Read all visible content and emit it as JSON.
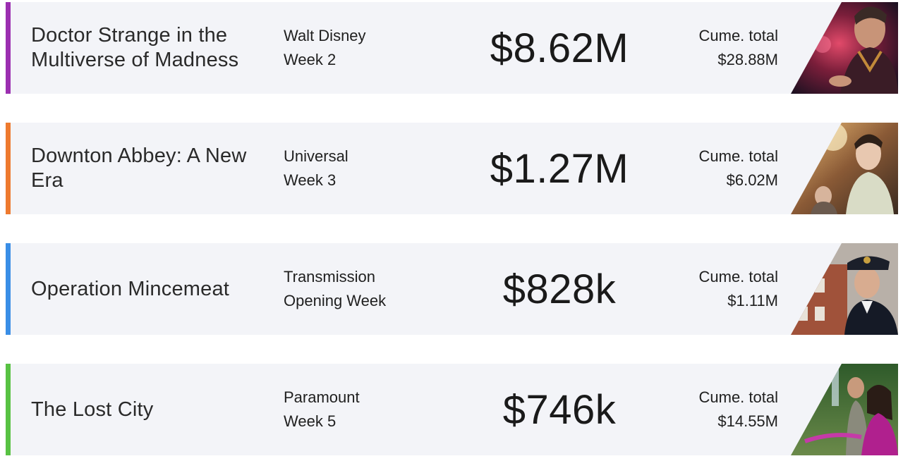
{
  "cume_label": "Cume. total",
  "movies": [
    {
      "title": "Doctor Strange in the Multiverse of Madness",
      "distributor": "Walt Disney",
      "week": "Week 2",
      "gross": "$8.62M",
      "cume": "$28.88M",
      "accent_color": "#9b2fb0",
      "poster_icon": "doctor-strange-poster"
    },
    {
      "title": "Downton Abbey: A New Era",
      "distributor": "Universal",
      "week": "Week 3",
      "gross": "$1.27M",
      "cume": "$6.02M",
      "accent_color": "#ee7a2f",
      "poster_icon": "downton-abbey-poster"
    },
    {
      "title": "Operation Mincemeat",
      "distributor": "Transmission",
      "week": "Opening Week",
      "gross": "$828k",
      "cume": "$1.11M",
      "accent_color": "#3a8ee6",
      "poster_icon": "operation-mincemeat-poster"
    },
    {
      "title": "The Lost City",
      "distributor": "Paramount",
      "week": "Week 5",
      "gross": "$746k",
      "cume": "$14.55M",
      "accent_color": "#58c243",
      "poster_icon": "lost-city-poster"
    }
  ]
}
